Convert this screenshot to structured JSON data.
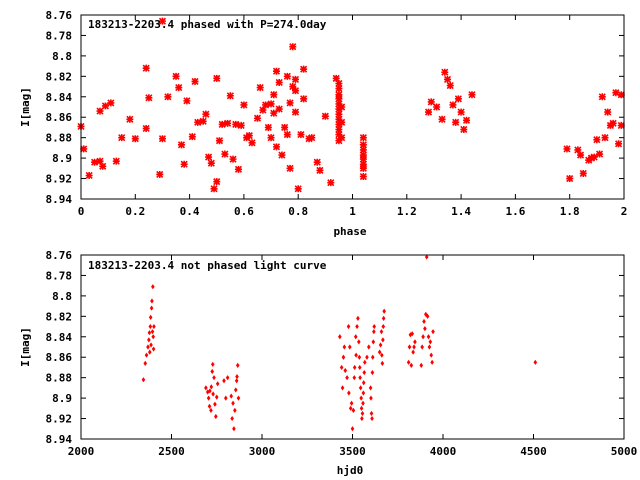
{
  "chart_data": [
    {
      "type": "scatter",
      "title": "183213-2203.4 phased with P=274.0day",
      "xlabel": "phase",
      "ylabel": "I[mag]",
      "xlim": [
        0,
        2
      ],
      "ylim": [
        8.94,
        8.76
      ],
      "y_inverted": true,
      "xticks": [
        "0",
        "0.2",
        "0.4",
        "0.6",
        "0.8",
        "1",
        "1.2",
        "1.4",
        "1.6",
        "1.8",
        "2"
      ],
      "yticks": [
        "8.76",
        "8.78",
        "8.8",
        "8.82",
        "8.84",
        "8.86",
        "8.88",
        "8.9",
        "8.92",
        "8.94"
      ],
      "grid": false,
      "marker_color": "#ff0000",
      "series": [
        {
          "points": [
            [
              0.0,
              8.869
            ],
            [
              0.01,
              8.891
            ],
            [
              0.03,
              8.917
            ],
            [
              0.05,
              8.904
            ],
            [
              0.07,
              8.903
            ],
            [
              0.07,
              8.854
            ],
            [
              0.08,
              8.908
            ],
            [
              0.09,
              8.849
            ],
            [
              0.11,
              8.846
            ],
            [
              0.13,
              8.903
            ],
            [
              0.15,
              8.88
            ],
            [
              0.18,
              8.862
            ],
            [
              0.2,
              8.881
            ],
            [
              0.24,
              8.871
            ],
            [
              0.24,
              8.812
            ],
            [
              0.25,
              8.841
            ],
            [
              0.29,
              8.916
            ],
            [
              0.3,
              8.881
            ],
            [
              0.3,
              8.766
            ],
            [
              0.32,
              8.84
            ],
            [
              0.35,
              8.82
            ],
            [
              0.36,
              8.831
            ],
            [
              0.37,
              8.887
            ],
            [
              0.38,
              8.906
            ],
            [
              0.39,
              8.844
            ],
            [
              0.41,
              8.879
            ],
            [
              0.42,
              8.825
            ],
            [
              0.43,
              8.865
            ],
            [
              0.45,
              8.864
            ],
            [
              0.46,
              8.857
            ],
            [
              0.47,
              8.899
            ],
            [
              0.48,
              8.905
            ],
            [
              0.49,
              8.93
            ],
            [
              0.5,
              8.923
            ],
            [
              0.5,
              8.822
            ],
            [
              0.51,
              8.883
            ],
            [
              0.52,
              8.867
            ],
            [
              0.53,
              8.896
            ],
            [
              0.54,
              8.866
            ],
            [
              0.55,
              8.839
            ],
            [
              0.56,
              8.901
            ],
            [
              0.57,
              8.867
            ],
            [
              0.58,
              8.911
            ],
            [
              0.59,
              8.868
            ],
            [
              0.6,
              8.848
            ],
            [
              0.61,
              8.88
            ],
            [
              0.62,
              8.878
            ],
            [
              0.63,
              8.885
            ],
            [
              0.65,
              8.861
            ],
            [
              0.66,
              8.831
            ],
            [
              0.67,
              8.853
            ],
            [
              0.68,
              8.848
            ],
            [
              0.69,
              8.87
            ],
            [
              0.7,
              8.88
            ],
            [
              0.7,
              8.847
            ],
            [
              0.71,
              8.856
            ],
            [
              0.71,
              8.838
            ],
            [
              0.72,
              8.815
            ],
            [
              0.72,
              8.889
            ],
            [
              0.73,
              8.826
            ],
            [
              0.73,
              8.852
            ],
            [
              0.74,
              8.897
            ],
            [
              0.75,
              8.87
            ],
            [
              0.76,
              8.877
            ],
            [
              0.76,
              8.82
            ],
            [
              0.77,
              8.91
            ],
            [
              0.77,
              8.846
            ],
            [
              0.78,
              8.83
            ],
            [
              0.78,
              8.791
            ],
            [
              0.79,
              8.823
            ],
            [
              0.79,
              8.834
            ],
            [
              0.79,
              8.855
            ],
            [
              0.8,
              8.93
            ],
            [
              0.81,
              8.877
            ],
            [
              0.82,
              8.842
            ],
            [
              0.82,
              8.813
            ],
            [
              0.84,
              8.881
            ],
            [
              0.85,
              8.88
            ],
            [
              0.87,
              8.904
            ],
            [
              0.88,
              8.912
            ],
            [
              0.9,
              8.859
            ],
            [
              0.92,
              8.924
            ],
            [
              0.94,
              8.822
            ],
            [
              0.95,
              8.827
            ],
            [
              0.95,
              8.832
            ],
            [
              0.95,
              8.838
            ],
            [
              0.95,
              8.842
            ],
            [
              0.95,
              8.847
            ],
            [
              0.95,
              8.852
            ],
            [
              0.95,
              8.857
            ],
            [
              0.95,
              8.862
            ],
            [
              0.95,
              8.867
            ],
            [
              0.95,
              8.872
            ],
            [
              0.95,
              8.877
            ],
            [
              0.95,
              8.883
            ],
            [
              0.96,
              8.85
            ],
            [
              0.96,
              8.865
            ],
            [
              0.96,
              8.88
            ],
            [
              1.04,
              8.88
            ],
            [
              1.04,
              8.887
            ],
            [
              1.04,
              8.892
            ],
            [
              1.04,
              8.897
            ],
            [
              1.04,
              8.901
            ],
            [
              1.04,
              8.906
            ],
            [
              1.04,
              8.91
            ],
            [
              1.04,
              8.918
            ],
            [
              1.28,
              8.855
            ],
            [
              1.29,
              8.845
            ],
            [
              1.31,
              8.85
            ],
            [
              1.33,
              8.862
            ],
            [
              1.34,
              8.816
            ],
            [
              1.35,
              8.823
            ],
            [
              1.36,
              8.829
            ],
            [
              1.37,
              8.848
            ],
            [
              1.38,
              8.865
            ],
            [
              1.39,
              8.842
            ],
            [
              1.4,
              8.855
            ],
            [
              1.41,
              8.872
            ],
            [
              1.42,
              8.863
            ],
            [
              1.44,
              8.838
            ],
            [
              1.79,
              8.891
            ],
            [
              1.8,
              8.92
            ],
            [
              1.83,
              8.892
            ],
            [
              1.84,
              8.897
            ],
            [
              1.85,
              8.915
            ],
            [
              1.87,
              8.902
            ],
            [
              1.88,
              8.9
            ],
            [
              1.89,
              8.899
            ],
            [
              1.9,
              8.882
            ],
            [
              1.91,
              8.896
            ],
            [
              1.92,
              8.84
            ],
            [
              1.93,
              8.88
            ],
            [
              1.94,
              8.855
            ],
            [
              1.95,
              8.868
            ],
            [
              1.96,
              8.866
            ],
            [
              1.97,
              8.836
            ],
            [
              1.98,
              8.886
            ],
            [
              1.99,
              8.868
            ],
            [
              1.99,
              8.838
            ]
          ]
        }
      ]
    },
    {
      "type": "scatter",
      "title": "183213-2203.4 not phased light curve",
      "xlabel": "hjd0",
      "ylabel": "I[mag]",
      "xlim": [
        2000,
        5000
      ],
      "ylim": [
        8.94,
        8.76
      ],
      "y_inverted": true,
      "xticks": [
        "2000",
        "2500",
        "3000",
        "3500",
        "4000",
        "4500",
        "5000"
      ],
      "yticks": [
        "8.76",
        "8.78",
        "8.8",
        "8.82",
        "8.84",
        "8.86",
        "8.88",
        "8.9",
        "8.92",
        "8.94"
      ],
      "grid": false,
      "marker_color": "#ff0000",
      "series": [
        {
          "points": [
            [
              2345,
              8.882
            ],
            [
              2355,
              8.866
            ],
            [
              2362,
              8.858
            ],
            [
              2370,
              8.85
            ],
            [
              2375,
              8.843
            ],
            [
              2378,
              8.836
            ],
            [
              2380,
              8.855
            ],
            [
              2383,
              8.83
            ],
            [
              2385,
              8.821
            ],
            [
              2387,
              8.848
            ],
            [
              2390,
              8.812
            ],
            [
              2392,
              8.805
            ],
            [
              2395,
              8.835
            ],
            [
              2397,
              8.791
            ],
            [
              2399,
              8.84
            ],
            [
              2401,
              8.852
            ],
            [
              2403,
              8.83
            ],
            [
              2690,
              8.89
            ],
            [
              2700,
              8.894
            ],
            [
              2705,
              8.9
            ],
            [
              2710,
              8.908
            ],
            [
              2712,
              8.893
            ],
            [
              2718,
              8.912
            ],
            [
              2720,
              8.889
            ],
            [
              2725,
              8.874
            ],
            [
              2728,
              8.867
            ],
            [
              2730,
              8.896
            ],
            [
              2735,
              8.88
            ],
            [
              2740,
              8.906
            ],
            [
              2745,
              8.918
            ],
            [
              2750,
              8.899
            ],
            [
              2755,
              8.886
            ],
            [
              2790,
              8.883
            ],
            [
              2800,
              8.9
            ],
            [
              2810,
              8.88
            ],
            [
              2830,
              8.898
            ],
            [
              2835,
              8.92
            ],
            [
              2840,
              8.905
            ],
            [
              2845,
              8.93
            ],
            [
              2850,
              8.912
            ],
            [
              2855,
              8.892
            ],
            [
              2860,
              8.883
            ],
            [
              2862,
              8.879
            ],
            [
              2866,
              8.868
            ],
            [
              2870,
              8.9
            ],
            [
              3430,
              8.84
            ],
            [
              3440,
              8.87
            ],
            [
              3445,
              8.89
            ],
            [
              3450,
              8.86
            ],
            [
              3455,
              8.85
            ],
            [
              3460,
              8.873
            ],
            [
              3470,
              8.88
            ],
            [
              3478,
              8.83
            ],
            [
              3480,
              8.895
            ],
            [
              3485,
              8.85
            ],
            [
              3490,
              8.91
            ],
            [
              3495,
              8.905
            ],
            [
              3500,
              8.93
            ],
            [
              3505,
              8.912
            ],
            [
              3510,
              8.88
            ],
            [
              3512,
              8.87
            ],
            [
              3518,
              8.84
            ],
            [
              3520,
              8.858
            ],
            [
              3525,
              8.83
            ],
            [
              3530,
              8.822
            ],
            [
              3535,
              8.845
            ],
            [
              3538,
              8.86
            ],
            [
              3540,
              8.87
            ],
            [
              3542,
              8.88
            ],
            [
              3545,
              8.89
            ],
            [
              3548,
              8.9
            ],
            [
              3550,
              8.91
            ],
            [
              3552,
              8.92
            ],
            [
              3555,
              8.915
            ],
            [
              3558,
              8.905
            ],
            [
              3560,
              8.895
            ],
            [
              3562,
              8.885
            ],
            [
              3565,
              8.875
            ],
            [
              3568,
              8.865
            ],
            [
              3580,
              8.86
            ],
            [
              3590,
              8.85
            ],
            [
              3600,
              8.89
            ],
            [
              3602,
              8.9
            ],
            [
              3605,
              8.915
            ],
            [
              3608,
              8.92
            ],
            [
              3610,
              8.875
            ],
            [
              3612,
              8.86
            ],
            [
              3615,
              8.845
            ],
            [
              3618,
              8.835
            ],
            [
              3620,
              8.83
            ],
            [
              3650,
              8.855
            ],
            [
              3655,
              8.848
            ],
            [
              3660,
              8.835
            ],
            [
              3662,
              8.858
            ],
            [
              3665,
              8.866
            ],
            [
              3668,
              8.843
            ],
            [
              3670,
              8.83
            ],
            [
              3672,
              8.822
            ],
            [
              3675,
              8.815
            ],
            [
              3810,
              8.865
            ],
            [
              3815,
              8.85
            ],
            [
              3820,
              8.838
            ],
            [
              3825,
              8.868
            ],
            [
              3830,
              8.837
            ],
            [
              3835,
              8.855
            ],
            [
              3840,
              8.85
            ],
            [
              3845,
              8.845
            ],
            [
              3880,
              8.868
            ],
            [
              3885,
              8.85
            ],
            [
              3890,
              8.84
            ],
            [
              3895,
              8.825
            ],
            [
              3900,
              8.832
            ],
            [
              3905,
              8.818
            ],
            [
              3910,
              8.762
            ],
            [
              3915,
              8.82
            ],
            [
              3920,
              8.84
            ],
            [
              3925,
              8.85
            ],
            [
              3930,
              8.845
            ],
            [
              3935,
              8.858
            ],
            [
              3940,
              8.865
            ],
            [
              3945,
              8.835
            ],
            [
              4510,
              8.865
            ]
          ]
        }
      ]
    }
  ]
}
